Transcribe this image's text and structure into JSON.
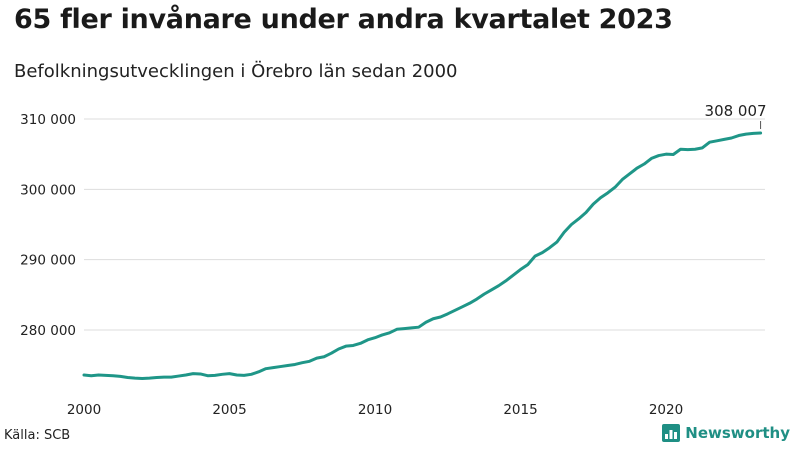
{
  "header": {
    "title": "65 fler invånare under andra kvartalet 2023",
    "subtitle": "Befolkningsutvecklingen i Örebro län sedan 2000"
  },
  "footer": {
    "source": "Källa: SCB",
    "brand": "Newsworthy",
    "brand_icon": "bar-chart-logo-icon"
  },
  "colors": {
    "line": "#1f9688",
    "brand": "#1f8f84",
    "grid": "#dddddd"
  },
  "chart_data": {
    "type": "line",
    "title": "65 fler invånare under andra kvartalet 2023",
    "subtitle": "Befolkningsutvecklingen i Örebro län sedan 2000",
    "xlabel": "",
    "ylabel": "",
    "xlim": [
      2000,
      2023.5
    ],
    "ylim": [
      272500,
      311000
    ],
    "x_ticks": [
      2000,
      2005,
      2010,
      2015,
      2020
    ],
    "x_tick_labels": [
      "2000",
      "2005",
      "2010",
      "2015",
      "2020"
    ],
    "y_ticks": [
      280000,
      290000,
      300000,
      310000
    ],
    "y_tick_labels": [
      "280 000",
      "290 000",
      "300 000",
      "310 000"
    ],
    "grid": "horizontal",
    "legend": "none",
    "annotations": [
      {
        "label": "308 007",
        "x": 2023.25,
        "y": 308007
      }
    ],
    "series": [
      {
        "points": [
          [
            2000.0,
            273600
          ],
          [
            2000.25,
            273500
          ],
          [
            2000.5,
            273600
          ],
          [
            2000.75,
            273550
          ],
          [
            2001.0,
            273500
          ],
          [
            2001.25,
            273400
          ],
          [
            2001.5,
            273250
          ],
          [
            2001.75,
            273150
          ],
          [
            2002.0,
            273100
          ],
          [
            2002.25,
            273150
          ],
          [
            2002.5,
            273250
          ],
          [
            2002.75,
            273300
          ],
          [
            2003.0,
            273300
          ],
          [
            2003.25,
            273450
          ],
          [
            2003.5,
            273600
          ],
          [
            2003.75,
            273800
          ],
          [
            2004.0,
            273750
          ],
          [
            2004.25,
            273500
          ],
          [
            2004.5,
            273550
          ],
          [
            2004.75,
            273700
          ],
          [
            2005.0,
            273800
          ],
          [
            2005.25,
            273600
          ],
          [
            2005.5,
            273550
          ],
          [
            2005.75,
            273700
          ],
          [
            2006.0,
            274050
          ],
          [
            2006.25,
            274500
          ],
          [
            2006.5,
            274650
          ],
          [
            2006.75,
            274800
          ],
          [
            2007.0,
            274950
          ],
          [
            2007.25,
            275100
          ],
          [
            2007.5,
            275350
          ],
          [
            2007.75,
            275550
          ],
          [
            2008.0,
            276000
          ],
          [
            2008.25,
            276200
          ],
          [
            2008.5,
            276700
          ],
          [
            2008.75,
            277300
          ],
          [
            2009.0,
            277700
          ],
          [
            2009.25,
            277800
          ],
          [
            2009.5,
            278100
          ],
          [
            2009.75,
            278600
          ],
          [
            2010.0,
            278900
          ],
          [
            2010.25,
            279300
          ],
          [
            2010.5,
            279600
          ],
          [
            2010.75,
            280100
          ],
          [
            2011.0,
            280200
          ],
          [
            2011.25,
            280300
          ],
          [
            2011.5,
            280400
          ],
          [
            2011.75,
            281100
          ],
          [
            2012.0,
            281600
          ],
          [
            2012.25,
            281850
          ],
          [
            2012.5,
            282300
          ],
          [
            2012.75,
            282800
          ],
          [
            2013.0,
            283300
          ],
          [
            2013.25,
            283800
          ],
          [
            2013.5,
            284400
          ],
          [
            2013.75,
            285100
          ],
          [
            2014.0,
            285700
          ],
          [
            2014.25,
            286300
          ],
          [
            2014.5,
            287000
          ],
          [
            2014.75,
            287800
          ],
          [
            2015.0,
            288600
          ],
          [
            2015.25,
            289300
          ],
          [
            2015.5,
            290500
          ],
          [
            2015.75,
            291000
          ],
          [
            2016.0,
            291700
          ],
          [
            2016.25,
            292500
          ],
          [
            2016.5,
            293900
          ],
          [
            2016.75,
            295000
          ],
          [
            2017.0,
            295800
          ],
          [
            2017.25,
            296700
          ],
          [
            2017.5,
            297900
          ],
          [
            2017.75,
            298800
          ],
          [
            2018.0,
            299500
          ],
          [
            2018.25,
            300300
          ],
          [
            2018.5,
            301400
          ],
          [
            2018.75,
            302200
          ],
          [
            2019.0,
            303000
          ],
          [
            2019.25,
            303600
          ],
          [
            2019.5,
            304400
          ],
          [
            2019.75,
            304800
          ],
          [
            2020.0,
            305000
          ],
          [
            2020.25,
            304950
          ],
          [
            2020.5,
            305700
          ],
          [
            2020.75,
            305650
          ],
          [
            2021.0,
            305700
          ],
          [
            2021.25,
            305900
          ],
          [
            2021.5,
            306700
          ],
          [
            2021.75,
            306900
          ],
          [
            2022.0,
            307100
          ],
          [
            2022.25,
            307300
          ],
          [
            2022.5,
            307650
          ],
          [
            2022.75,
            307850
          ],
          [
            2023.0,
            307950
          ],
          [
            2023.25,
            308007
          ]
        ]
      }
    ]
  }
}
